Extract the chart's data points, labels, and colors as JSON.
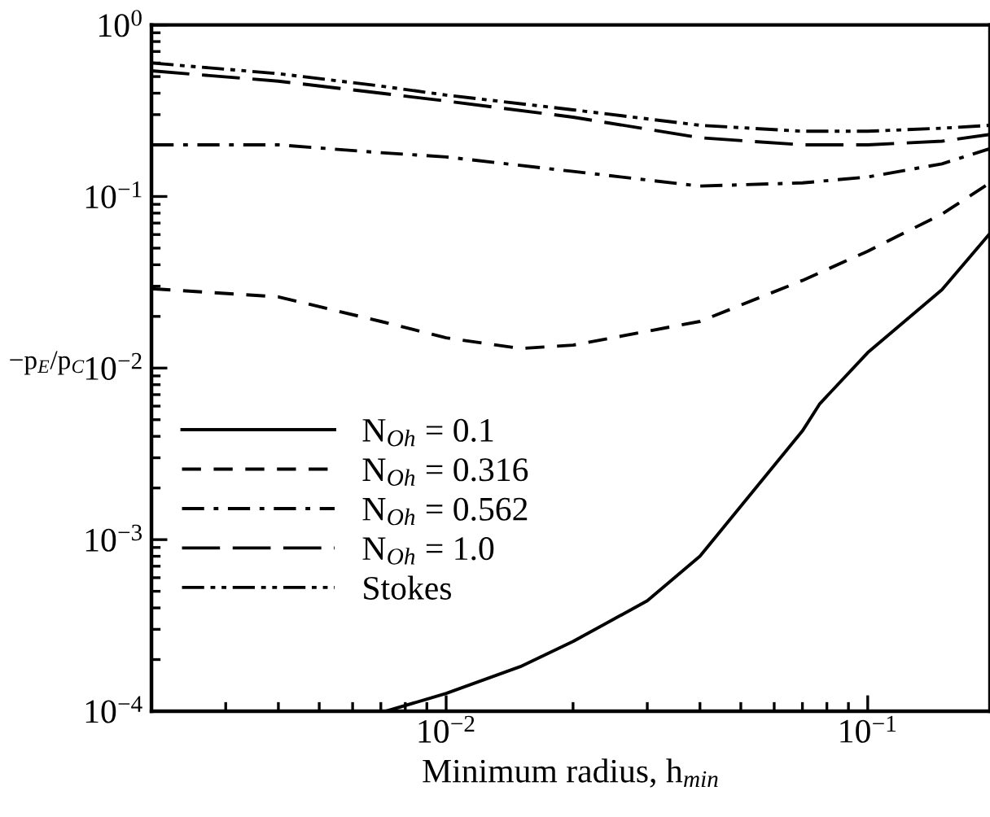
{
  "chart_data": {
    "type": "line",
    "xlabel": "Minimum radius, h$_{min}$",
    "ylabel": "−p$_{E}$/p$_{C}$",
    "log": "xy",
    "xlim": [
      0.002,
      0.195
    ],
    "ylim": [
      0.0001,
      1
    ],
    "xticks": [
      {
        "value": 0.01,
        "label": "10$^{−2}$"
      },
      {
        "value": 0.1,
        "label": "10$^{−1}$"
      }
    ],
    "yticks": [
      {
        "value": 0.0001,
        "label": "10$^{−4}$"
      },
      {
        "value": 0.001,
        "label": "10$^{−3}$"
      },
      {
        "value": 0.01,
        "label": "10$^{−2}$"
      },
      {
        "value": 0.1,
        "label": "10$^{−1}$"
      },
      {
        "value": 1,
        "label": "10$^{0}$"
      }
    ],
    "legend": "left",
    "grid": false,
    "series": [
      {
        "name": "N$_{Oh}$ = 0.1",
        "color": "#000000",
        "line_style": "solid",
        "x": [
          0.0072,
          0.01,
          0.015,
          0.02,
          0.03,
          0.04,
          0.07,
          0.077,
          0.1,
          0.15,
          0.195
        ],
        "values": [
          0.0001,
          0.000127,
          0.000182,
          0.000255,
          0.00044,
          0.0008,
          0.0043,
          0.0062,
          0.0123,
          0.0286,
          0.061
        ]
      },
      {
        "name": "N$_{Oh}$ = 0.316",
        "color": "#000000",
        "line_style": "dashed",
        "x": [
          0.002,
          0.004,
          0.007,
          0.01,
          0.015,
          0.02,
          0.04,
          0.07,
          0.1,
          0.15,
          0.195
        ],
        "values": [
          0.029,
          0.026,
          0.0187,
          0.015,
          0.013,
          0.0136,
          0.0187,
          0.0324,
          0.048,
          0.079,
          0.12
        ]
      },
      {
        "name": "N$_{Oh}$ = 0.562",
        "color": "#000000",
        "line_style": "dashdot",
        "x": [
          0.002,
          0.004,
          0.007,
          0.01,
          0.02,
          0.04,
          0.07,
          0.1,
          0.15,
          0.195
        ],
        "values": [
          0.2,
          0.2,
          0.18,
          0.17,
          0.14,
          0.115,
          0.12,
          0.13,
          0.155,
          0.19
        ]
      },
      {
        "name": "N$_{Oh}$ = 1.0",
        "color": "#000000",
        "line_style": "longdash",
        "x": [
          0.002,
          0.004,
          0.007,
          0.01,
          0.02,
          0.04,
          0.07,
          0.1,
          0.15,
          0.195
        ],
        "values": [
          0.54,
          0.47,
          0.4,
          0.36,
          0.29,
          0.22,
          0.2,
          0.2,
          0.21,
          0.23
        ]
      },
      {
        "name": "Stokes",
        "color": "#000000",
        "line_style": "dashdotdot",
        "x": [
          0.002,
          0.004,
          0.007,
          0.01,
          0.02,
          0.04,
          0.07,
          0.1,
          0.15,
          0.195
        ],
        "values": [
          0.6,
          0.52,
          0.44,
          0.39,
          0.32,
          0.26,
          0.24,
          0.24,
          0.25,
          0.26
        ]
      }
    ]
  }
}
